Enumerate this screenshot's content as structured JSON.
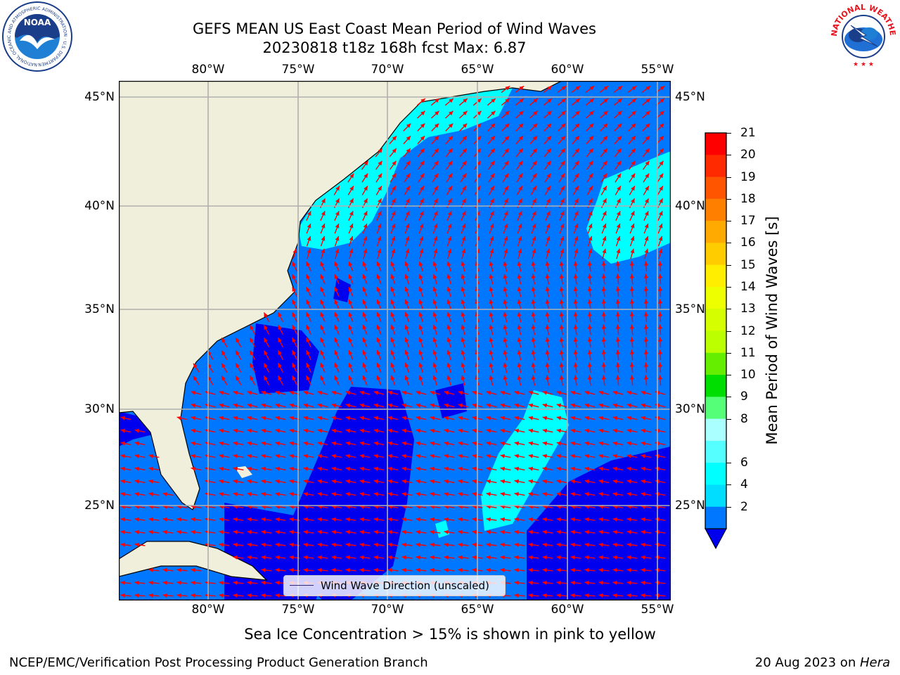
{
  "title": {
    "line1": "GEFS MEAN US East Coast Mean Period of Wind Waves",
    "line2": "20230818 t18z 168h fcst   Max: 6.87"
  },
  "axes": {
    "lon_ticks": [
      "80°W",
      "75°W",
      "70°W",
      "65°W",
      "60°W",
      "55°W"
    ],
    "lat_ticks": [
      "45°N",
      "40°N",
      "35°N",
      "30°N",
      "25°N"
    ]
  },
  "colorbar": {
    "label": "Mean Period of Wind Waves [s]",
    "ticks": [
      "21",
      "20",
      "19",
      "18",
      "17",
      "16",
      "15",
      "14",
      "13",
      "12",
      "11",
      "10",
      "9",
      "8",
      "6",
      "4",
      "2"
    ],
    "colors": [
      "#ff0000",
      "#ff2a00",
      "#ff5500",
      "#ff7f00",
      "#ffaa00",
      "#ffcc00",
      "#ffee00",
      "#eeff00",
      "#d5ff00",
      "#bbff00",
      "#66ee00",
      "#00dd00",
      "#55ff77",
      "#aaffff",
      "#55ffff",
      "#00ffff",
      "#00ddff",
      "#0077ff"
    ],
    "under_color": "#0000ee"
  },
  "map_colors": {
    "land": "#efefdc",
    "ocean_base": "#0077ff",
    "ocean_low": "#0000ee",
    "ocean_mid": "#00ffff",
    "ocean_high": "#55ffff",
    "arrow": "#ff0000",
    "grid": "#b0b0b0"
  },
  "legend": {
    "label": "Wind Wave Direction (unscaled)"
  },
  "subtitle": "Sea Ice Concentration > 15% is shown in pink to yellow",
  "footer": {
    "left": "NCEP/EMC/Verification Post Processing Product Generation Branch",
    "right_prefix": "20 Aug 2023 on ",
    "right_machine": "Hera"
  },
  "logos": {
    "noaa_text": "NOAA",
    "noaa_ring": "NATIONAL OCEANIC AND ATMOSPHERIC ADMINISTRATION · U.S. DEPARTMENT OF COMMERCE",
    "nws_ring": "NATIONAL WEATHER SERVICE"
  }
}
